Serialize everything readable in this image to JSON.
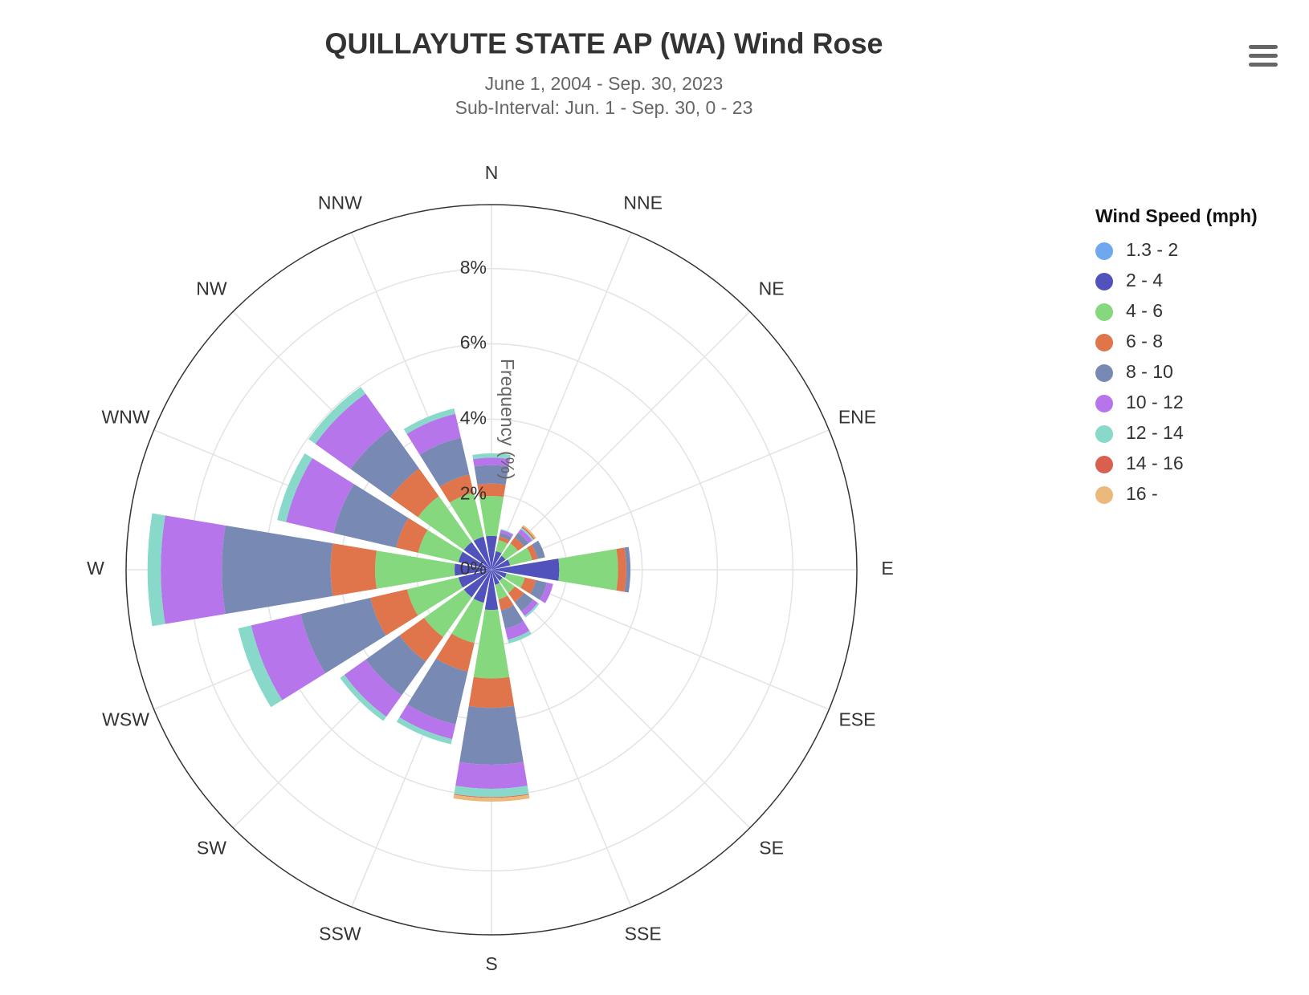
{
  "chart_data": {
    "type": "windrose",
    "title": "QUILLAYUTE STATE AP (WA) Wind Rose",
    "subtitle": [
      "June 1, 2004 - Sep. 30, 2023",
      "Sub-Interval: Jun. 1 - Sep. 30, 0 - 23"
    ],
    "axis_title": "Frequency (%)",
    "legend_title": "Wind Speed (mph)",
    "categories": [
      "N",
      "NNE",
      "NE",
      "ENE",
      "E",
      "ESE",
      "SE",
      "SSE",
      "S",
      "SSW",
      "SW",
      "WSW",
      "W",
      "WNW",
      "NW",
      "NNW"
    ],
    "ylim": [
      0,
      9.7
    ],
    "yticks": [
      {
        "value": 0,
        "label": "0%"
      },
      {
        "value": 2,
        "label": "2%"
      },
      {
        "value": 4,
        "label": "4%"
      },
      {
        "value": 6,
        "label": "6%"
      },
      {
        "value": 8,
        "label": "8%"
      }
    ],
    "series": [
      {
        "name": "1.3 - 2",
        "color": "#6ea8ee",
        "values": [
          0.02,
          0.01,
          0.01,
          0.01,
          0.02,
          0.01,
          0.01,
          0.01,
          0.02,
          0.02,
          0.02,
          0.02,
          0.02,
          0.02,
          0.02,
          0.02
        ]
      },
      {
        "name": "2 - 4",
        "color": "#5252bd",
        "values": [
          0.88,
          0.5,
          0.45,
          0.5,
          1.78,
          0.4,
          0.35,
          0.4,
          1.05,
          0.88,
          0.88,
          0.88,
          0.96,
          0.88,
          0.88,
          0.88
        ]
      },
      {
        "name": "4 - 6",
        "color": "#86d87f",
        "values": [
          1.06,
          0.3,
          0.4,
          0.6,
          1.56,
          0.5,
          0.4,
          0.4,
          1.82,
          1.1,
          1.3,
          1.4,
          2.11,
          1.1,
          1.5,
          1.2
        ]
      },
      {
        "name": "6 - 8",
        "color": "#e0744b",
        "values": [
          0.33,
          0.1,
          0.2,
          0.15,
          0.22,
          0.3,
          0.3,
          0.3,
          0.78,
          0.78,
          0.8,
          1.0,
          1.18,
          0.6,
          0.9,
          0.5
        ]
      },
      {
        "name": "8 - 10",
        "color": "#7889b3",
        "values": [
          0.49,
          0.1,
          0.15,
          0.2,
          0.11,
          0.3,
          0.3,
          0.5,
          1.51,
          1.44,
          1.1,
          1.9,
          2.89,
          1.7,
          1.3,
          1.0
        ]
      },
      {
        "name": "10 - 12",
        "color": "#b675eb",
        "values": [
          0.2,
          0.08,
          0.12,
          0,
          0,
          0.17,
          0.15,
          0.3,
          0.64,
          0.4,
          0.7,
          1.35,
          1.62,
          1.3,
          1.15,
          0.65
        ]
      },
      {
        "name": "12 - 14",
        "color": "#88d9c9",
        "values": [
          0.11,
          0.02,
          0.05,
          0,
          0,
          0,
          0.05,
          0.1,
          0.22,
          0.14,
          0.14,
          0.35,
          0.35,
          0.24,
          0.22,
          0.15
        ]
      },
      {
        "name": "14 - 16",
        "color": "#d9604f",
        "values": [
          0,
          0,
          0.03,
          0,
          0,
          0,
          0,
          0,
          0.02,
          0,
          0,
          0,
          0,
          0,
          0,
          0
        ]
      },
      {
        "name": "16 -",
        "color": "#ebb97c",
        "values": [
          0,
          0,
          0.05,
          0,
          0,
          0,
          0,
          0,
          0.1,
          0,
          0,
          0,
          0,
          0,
          0,
          0
        ]
      }
    ]
  }
}
